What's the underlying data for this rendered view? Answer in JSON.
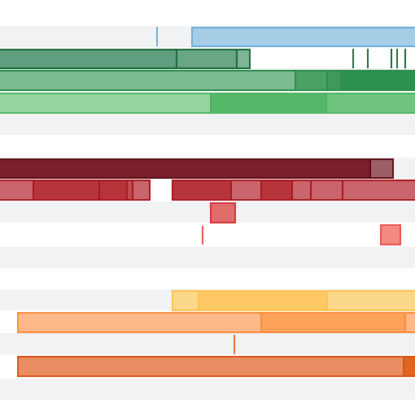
{
  "timeline": {
    "palette": {
      "lane_alt": "#f1f2f4",
      "lane_plain": "#ffffff",
      "blue": "#9ecae1",
      "dark_green": "#238b45",
      "mid_green": "#41ab5d",
      "light_green": "#74c476",
      "dark_red": "#67000d",
      "red": "#cb181d",
      "light_red": "#fb6a4a",
      "yellow": "#fec44f",
      "orange": "#fd8d3c",
      "dark_orange": "#d94801"
    }
  }
}
